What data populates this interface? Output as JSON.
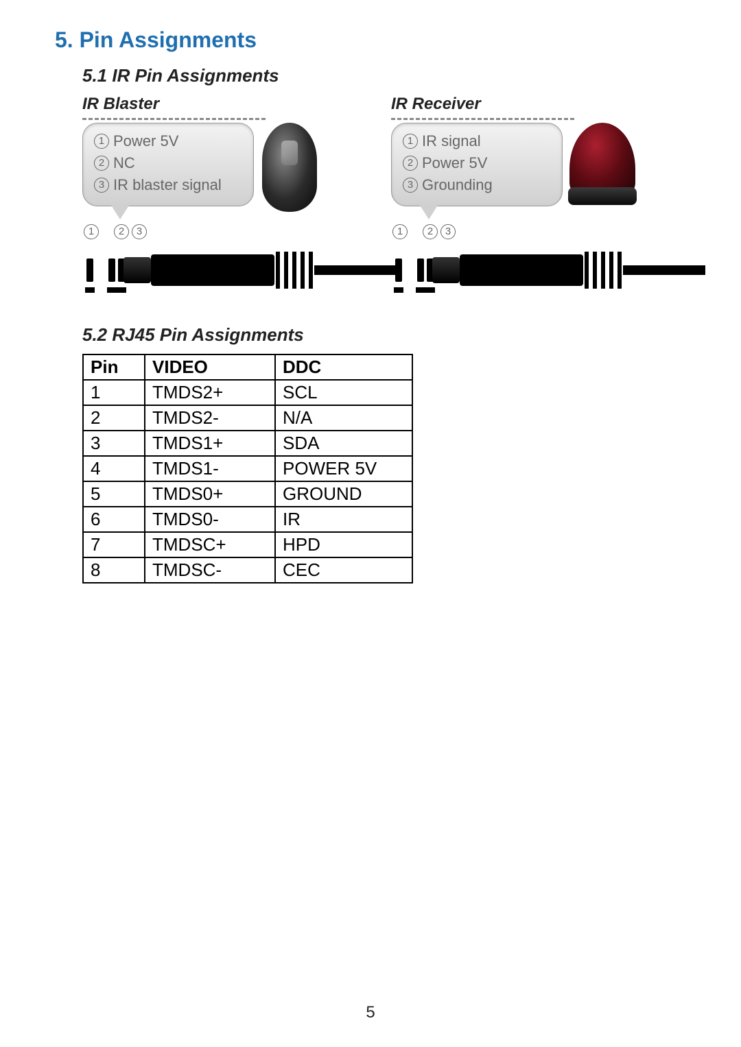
{
  "section": {
    "title": "5. Pin Assignments"
  },
  "sub1": {
    "title": "5.1 IR Pin Assignments"
  },
  "blaster": {
    "title": "IR Blaster",
    "pins": [
      {
        "n": "1",
        "label": "Power 5V"
      },
      {
        "n": "2",
        "label": "NC"
      },
      {
        "n": "3",
        "label": "IR blaster signal"
      }
    ]
  },
  "receiver": {
    "title": "IR Receiver",
    "pins": [
      {
        "n": "1",
        "label": "IR signal"
      },
      {
        "n": "2",
        "label": "Power 5V"
      },
      {
        "n": "3",
        "label": "Grounding"
      }
    ]
  },
  "markers": {
    "m1": "1",
    "m2": "2",
    "m3": "3"
  },
  "sub2": {
    "title": "5.2 RJ45 Pin Assignments"
  },
  "table": {
    "headers": {
      "pin": "Pin",
      "video": "VIDEO",
      "ddc": "DDC"
    },
    "rows": [
      {
        "pin": "1",
        "video": "TMDS2+",
        "ddc": "SCL"
      },
      {
        "pin": "2",
        "video": "TMDS2-",
        "ddc": "N/A"
      },
      {
        "pin": "3",
        "video": "TMDS1+",
        "ddc": "SDA"
      },
      {
        "pin": "4",
        "video": "TMDS1-",
        "ddc": "POWER 5V"
      },
      {
        "pin": "5",
        "video": "TMDS0+",
        "ddc": "GROUND"
      },
      {
        "pin": "6",
        "video": "TMDS0-",
        "ddc": "IR"
      },
      {
        "pin": "7",
        "video": "TMDSC+",
        "ddc": "HPD"
      },
      {
        "pin": "8",
        "video": "TMDSC-",
        "ddc": "CEC"
      }
    ]
  },
  "page": {
    "number": "5"
  },
  "colors": {
    "heading": "#1f6fb0",
    "text": "#222222",
    "callout_text": "#666666",
    "border": "#000000",
    "receiver_dome": "#5c0a12"
  }
}
